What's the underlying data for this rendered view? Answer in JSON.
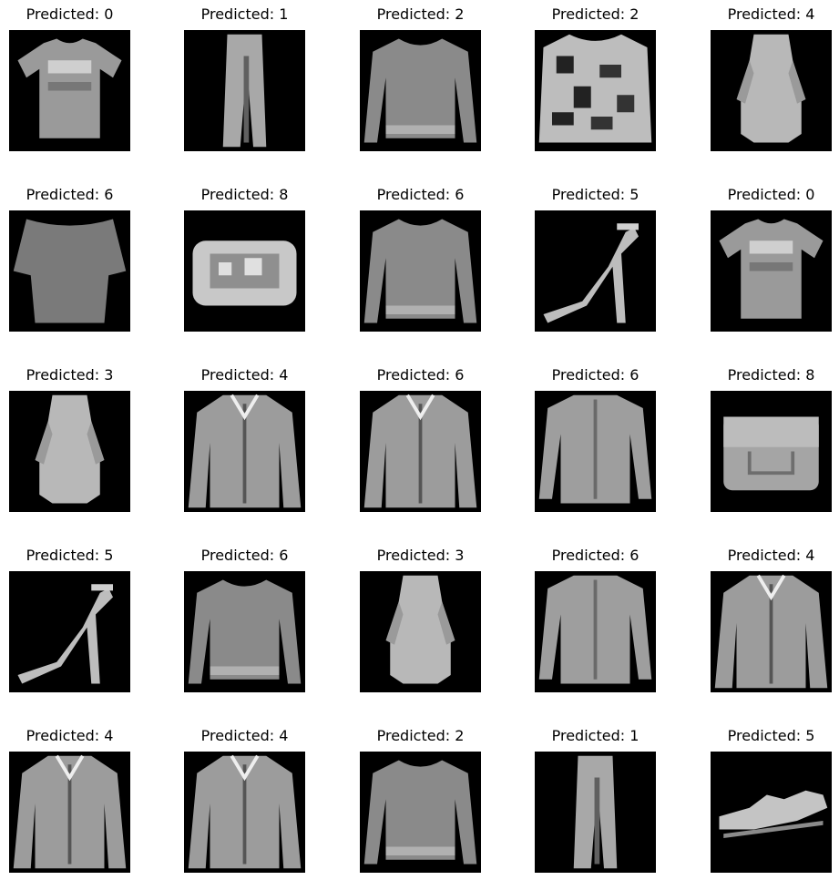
{
  "figure": {
    "background": "#ffffff",
    "image_background": "#000000",
    "title_prefix": "Predicted: ",
    "rows": 5,
    "cols": 5
  },
  "panels": [
    {
      "title": "Predicted: 0",
      "shape": "tshirt"
    },
    {
      "title": "Predicted: 1",
      "shape": "trouser"
    },
    {
      "title": "Predicted: 2",
      "shape": "pullover"
    },
    {
      "title": "Predicted: 2",
      "shape": "pullover-pattern"
    },
    {
      "title": "Predicted: 4",
      "shape": "dress"
    },
    {
      "title": "Predicted: 6",
      "shape": "top-wide"
    },
    {
      "title": "Predicted: 8",
      "shape": "bag-clutch"
    },
    {
      "title": "Predicted: 6",
      "shape": "pullover"
    },
    {
      "title": "Predicted: 5",
      "shape": "sandal-heel"
    },
    {
      "title": "Predicted: 0",
      "shape": "tshirt"
    },
    {
      "title": "Predicted: 3",
      "shape": "dress"
    },
    {
      "title": "Predicted: 4",
      "shape": "coat"
    },
    {
      "title": "Predicted: 6",
      "shape": "coat"
    },
    {
      "title": "Predicted: 6",
      "shape": "shirt"
    },
    {
      "title": "Predicted: 8",
      "shape": "bag"
    },
    {
      "title": "Predicted: 5",
      "shape": "sandal-heel"
    },
    {
      "title": "Predicted: 6",
      "shape": "pullover"
    },
    {
      "title": "Predicted: 3",
      "shape": "dress"
    },
    {
      "title": "Predicted: 6",
      "shape": "shirt"
    },
    {
      "title": "Predicted: 4",
      "shape": "coat"
    },
    {
      "title": "Predicted: 4",
      "shape": "coat"
    },
    {
      "title": "Predicted: 4",
      "shape": "coat"
    },
    {
      "title": "Predicted: 2",
      "shape": "pullover"
    },
    {
      "title": "Predicted: 1",
      "shape": "trouser"
    },
    {
      "title": "Predicted: 5",
      "shape": "sandal-flat"
    }
  ]
}
